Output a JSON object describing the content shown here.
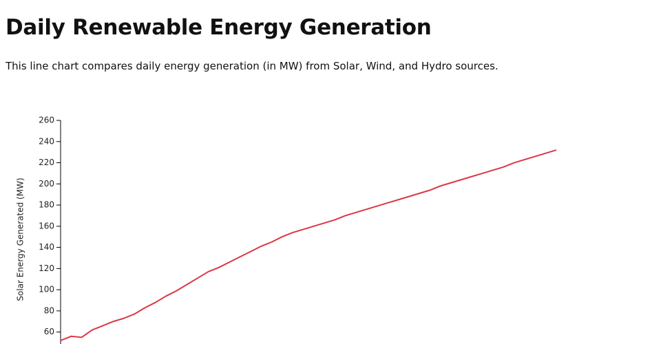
{
  "title": "Daily Renewable Energy Generation",
  "subtitle": "This line chart compares daily energy generation (in MW) from Solar, Wind, and Hydro sources.",
  "chart_data": {
    "type": "line",
    "ylabel": "Solar Energy Generated (MW)",
    "ylim": [
      50,
      260
    ],
    "yticks": [
      60,
      80,
      100,
      120,
      140,
      160,
      180,
      200,
      220,
      240,
      260
    ],
    "series": [
      {
        "name": "Solar",
        "color": "#dc3545",
        "values": [
          52,
          56,
          55,
          62,
          66,
          70,
          73,
          77,
          83,
          88,
          94,
          99,
          105,
          111,
          117,
          121,
          126,
          131,
          136,
          141,
          145,
          150,
          154,
          157,
          160,
          163,
          166,
          170,
          173,
          176,
          179,
          182,
          185,
          188,
          191,
          194,
          198,
          201,
          204,
          207,
          210,
          213,
          216,
          220,
          223,
          226,
          229,
          232
        ]
      }
    ]
  }
}
